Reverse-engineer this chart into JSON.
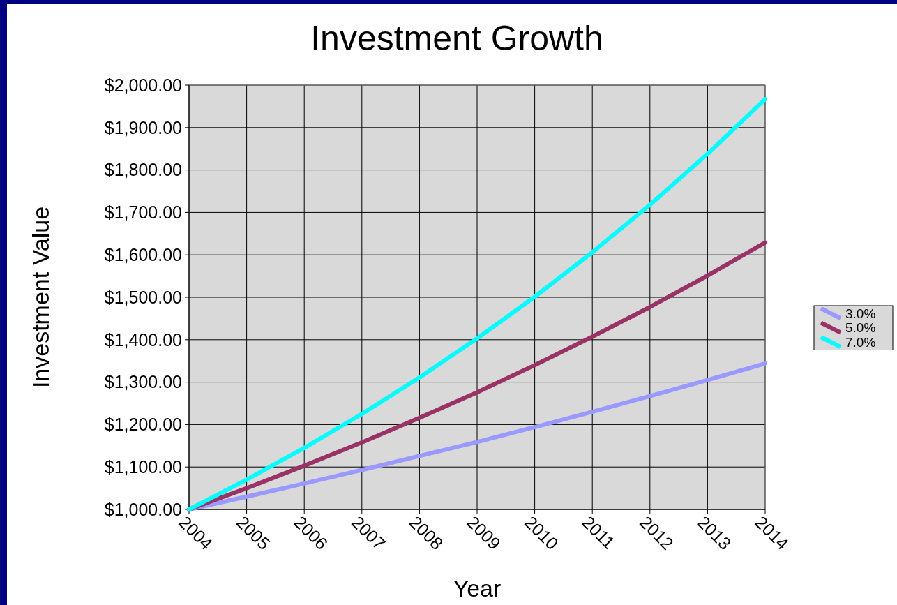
{
  "chart_data": {
    "type": "line",
    "title": "Investment Growth",
    "xlabel": "Year",
    "ylabel": "Investment Value",
    "categories": [
      "2004",
      "2005",
      "2006",
      "2007",
      "2008",
      "2009",
      "2010",
      "2011",
      "2012",
      "2013",
      "2014"
    ],
    "series": [
      {
        "name": "3.0%",
        "color": "#9999ff",
        "values": [
          1000,
          1030,
          1061,
          1093,
          1126,
          1159,
          1194,
          1230,
          1267,
          1305,
          1344
        ]
      },
      {
        "name": "5.0%",
        "color": "#993366",
        "values": [
          1000,
          1050,
          1103,
          1158,
          1216,
          1276,
          1340,
          1407,
          1477,
          1551,
          1629
        ]
      },
      {
        "name": "7.0%",
        "color": "#00ffff",
        "values": [
          1000,
          1070,
          1145,
          1225,
          1311,
          1403,
          1501,
          1606,
          1718,
          1838,
          1967
        ]
      }
    ],
    "ylim": [
      1000,
      2000
    ],
    "yticks": [
      {
        "value": 1000,
        "label": "$1,000.00"
      },
      {
        "value": 1100,
        "label": "$1,100.00"
      },
      {
        "value": 1200,
        "label": "$1,200.00"
      },
      {
        "value": 1300,
        "label": "$1,300.00"
      },
      {
        "value": 1400,
        "label": "$1,400.00"
      },
      {
        "value": 1500,
        "label": "$1,500.00"
      },
      {
        "value": 1600,
        "label": "$1,600.00"
      },
      {
        "value": 1700,
        "label": "$1,700.00"
      },
      {
        "value": 1800,
        "label": "$1,800.00"
      },
      {
        "value": 1900,
        "label": "$1,900.00"
      },
      {
        "value": 2000,
        "label": "$2,000.00"
      }
    ],
    "grid": true,
    "legend": "right",
    "marker": "none",
    "line_style": "solid"
  }
}
